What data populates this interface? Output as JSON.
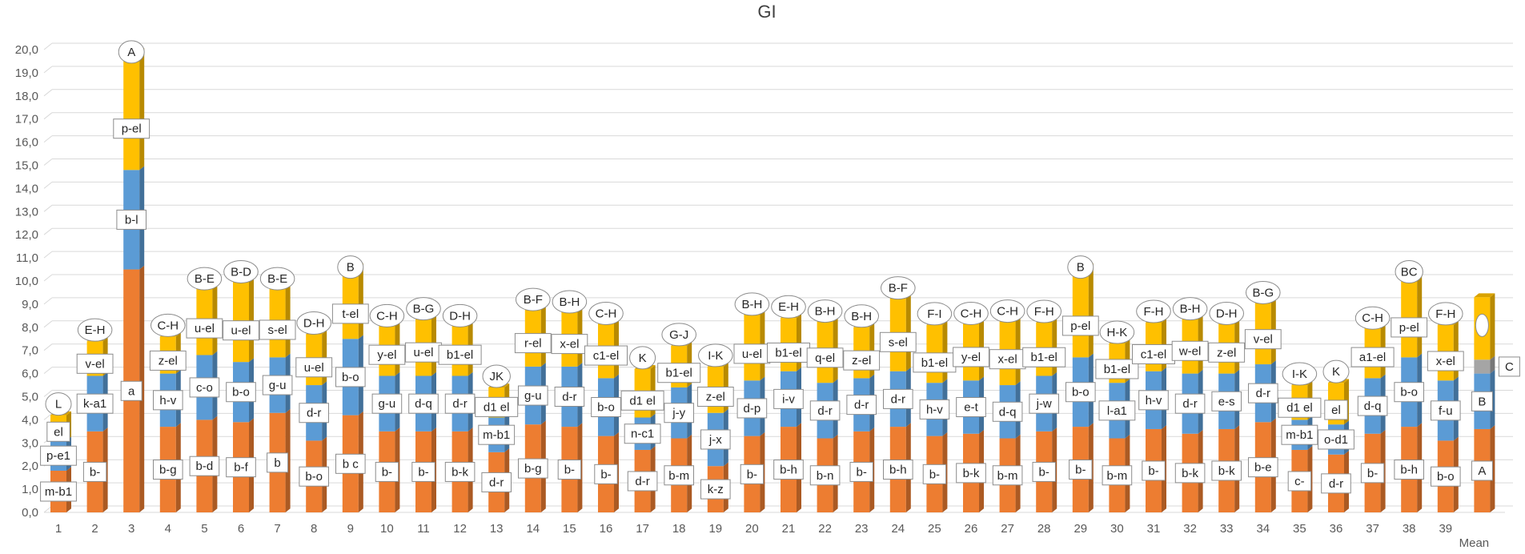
{
  "chart_data": {
    "type": "bar",
    "stacked": true,
    "title": "GI",
    "xlabel": "",
    "ylabel": "",
    "ylim": [
      0,
      20
    ],
    "y_ticks": [
      "0,0",
      "1,0",
      "2,0",
      "3,0",
      "4,0",
      "5,0",
      "6,0",
      "7,0",
      "8,0",
      "9,0",
      "10,0",
      "11,0",
      "12,0",
      "13,0",
      "14,0",
      "15,0",
      "16,0",
      "17,0",
      "18,0",
      "19,0",
      "20,0"
    ],
    "grid": true,
    "legend": "none",
    "categories": [
      "1",
      "2",
      "3",
      "4",
      "5",
      "6",
      "7",
      "8",
      "9",
      "10",
      "11",
      "12",
      "13",
      "14",
      "15",
      "16",
      "17",
      "18",
      "19",
      "20",
      "21",
      "22",
      "23",
      "24",
      "25",
      "26",
      "27",
      "28",
      "29",
      "30",
      "31",
      "32",
      "33",
      "34",
      "35",
      "36",
      "37",
      "38",
      "39",
      "Mean"
    ],
    "series": [
      {
        "color": "#ED7D31",
        "values": [
          1.8,
          3.5,
          10.5,
          3.7,
          4.0,
          3.9,
          4.3,
          3.1,
          4.2,
          3.5,
          3.5,
          3.5,
          2.6,
          3.8,
          3.7,
          3.3,
          2.7,
          3.2,
          2.0,
          3.3,
          3.7,
          3.2,
          3.5,
          3.7,
          3.3,
          3.4,
          3.2,
          3.5,
          3.7,
          3.2,
          3.6,
          3.4,
          3.6,
          3.9,
          2.7,
          2.5,
          3.4,
          3.7,
          3.1,
          3.6
        ]
      },
      {
        "color": "#5B9BD5",
        "values": [
          1.3,
          2.4,
          4.3,
          2.3,
          2.8,
          2.6,
          2.4,
          2.4,
          3.3,
          2.4,
          2.4,
          2.4,
          1.5,
          2.5,
          2.6,
          2.5,
          1.4,
          2.2,
          2.3,
          2.4,
          2.4,
          2.4,
          2.3,
          2.4,
          2.3,
          2.3,
          2.3,
          2.4,
          3.0,
          2.4,
          2.5,
          2.6,
          2.4,
          2.5,
          1.3,
          1.3,
          2.4,
          3.0,
          2.6,
          2.4
        ]
      },
      {
        "color": "#A5A5A5",
        "values": [
          0,
          0,
          0,
          0,
          0,
          0,
          0,
          0,
          0,
          0,
          0,
          0,
          0,
          0,
          0,
          0,
          0,
          0,
          0,
          0,
          0,
          0,
          0,
          0,
          0,
          0,
          0,
          0,
          0,
          0,
          0,
          0,
          0,
          0,
          0,
          0,
          0,
          0,
          0,
          0.6
        ]
      },
      {
        "color": "#FFC000",
        "values": [
          1.1,
          1.5,
          5.1,
          1.6,
          3.3,
          3.9,
          3.4,
          2.2,
          3.1,
          2.6,
          2.9,
          2.6,
          1.3,
          2.9,
          2.8,
          2.8,
          2.1,
          1.8,
          2.0,
          3.3,
          2.3,
          3.1,
          2.2,
          3.6,
          2.5,
          2.9,
          3.2,
          2.3,
          3.9,
          1.7,
          2.1,
          2.8,
          2.6,
          3.1,
          1.5,
          1.8,
          2.6,
          3.7,
          2.4,
          2.7
        ]
      }
    ],
    "bar_labels": [
      [
        "m-b1",
        "p-e1",
        "el",
        "L"
      ],
      [
        "b-",
        "k-a1",
        "v-el",
        "E-H"
      ],
      [
        "a",
        "b-l",
        "p-el",
        "A"
      ],
      [
        "b-g",
        "h-v",
        "z-el",
        "C-H"
      ],
      [
        "b-d",
        "c-o",
        "u-el",
        "B-E"
      ],
      [
        "b-f",
        "b-o",
        "u-el",
        "B-D"
      ],
      [
        "b",
        "g-u",
        "s-el",
        "B-E"
      ],
      [
        "b-o",
        "d-r",
        "u-el",
        "D-H"
      ],
      [
        "b c",
        "b-o",
        "t-el",
        "B"
      ],
      [
        "b-",
        "g-u",
        "y-el",
        "C-H"
      ],
      [
        "b-",
        "d-q",
        "u-el",
        "B-G"
      ],
      [
        "b-k",
        "d-r",
        "b1-el",
        "D-H"
      ],
      [
        "d-r",
        "m-b1",
        "d1 el",
        "JK"
      ],
      [
        "b-g",
        "g-u",
        "r-el",
        "B-F"
      ],
      [
        "b-",
        "d-r",
        "x-el",
        "B-H"
      ],
      [
        "b-",
        "b-o",
        "c1-el",
        "C-H"
      ],
      [
        "d-r",
        "n-c1",
        "d1 el",
        "K"
      ],
      [
        "b-m",
        "j-y",
        "b1-el",
        "G-J"
      ],
      [
        "k-z",
        "j-x",
        "z-el",
        "I-K"
      ],
      [
        "b-",
        "d-p",
        "u-el",
        "B-H"
      ],
      [
        "b-h",
        "i-v",
        "b1-el",
        "E-H"
      ],
      [
        "b-n",
        "d-r",
        "q-el",
        "B-H"
      ],
      [
        "b-",
        "d-r",
        "z-el",
        "B-H"
      ],
      [
        "b-h",
        "d-r",
        "s-el",
        "B-F"
      ],
      [
        "b-",
        "h-v",
        "b1-el",
        "F-I"
      ],
      [
        "b-k",
        "e-t",
        "y-el",
        "C-H"
      ],
      [
        "b-m",
        "d-q",
        "x-el",
        "C-H"
      ],
      [
        "b-",
        "j-w",
        "b1-el",
        "F-H"
      ],
      [
        "b-",
        "b-o",
        "p-el",
        "B"
      ],
      [
        "b-m",
        "l-a1",
        "b1-el",
        "H-K"
      ],
      [
        "b-",
        "h-v",
        "c1-el",
        "F-H"
      ],
      [
        "b-k",
        "d-r",
        "w-el",
        "B-H"
      ],
      [
        "b-k",
        "e-s",
        "z-el",
        "D-H"
      ],
      [
        "b-e",
        "d-r",
        "v-el",
        "B-G"
      ],
      [
        "c-",
        "m-b1",
        "d1 el",
        "I-K"
      ],
      [
        "d-r",
        "o-d1",
        "el",
        "K"
      ],
      [
        "b-",
        "d-q",
        "a1-el",
        "C-H"
      ],
      [
        "b-h",
        "b-o",
        "p-el",
        "BC"
      ],
      [
        "b-o",
        "f-u",
        "x-el",
        "F-H"
      ],
      [
        "A",
        "B",
        "C",
        ""
      ]
    ]
  }
}
